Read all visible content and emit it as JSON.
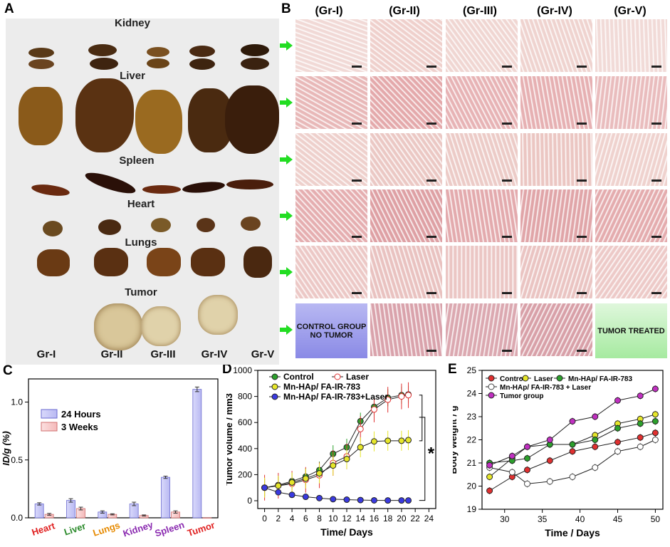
{
  "panel_labels": {
    "a": "A",
    "b": "B",
    "c": "C",
    "d": "D",
    "e": "E"
  },
  "panelA": {
    "organs": [
      "Kidney",
      "Liver",
      "Spleen",
      "Heart",
      "Lungs",
      "Tumor"
    ],
    "groups": [
      "Gr-I",
      "Gr-II",
      "Gr-III",
      "Gr-IV",
      "Gr-V"
    ]
  },
  "panelB": {
    "columns": [
      "(Gr-I)",
      "(Gr-II)",
      "(Gr-III)",
      "(Gr-IV)",
      "(Gr-V)"
    ],
    "control_box": "CONTROL GROUP NO TUMOR",
    "treated_box": "TUMOR TREATED"
  },
  "colors": {
    "bar1": "#b9b9f2",
    "bar2": "#f4b9b9",
    "control": "#2ca02c",
    "laser": "#e03030",
    "mnhap": "#e6e62a",
    "mnhap_laser": "#3a3ae0",
    "tumor_group": "#c030c0",
    "heart": "#e02020"
  },
  "chart_data": [
    {
      "type": "bar",
      "ylabel": "ID/g (%)",
      "ylim": [
        0,
        1.2
      ],
      "yticks": [
        "0.0",
        "0.5",
        "1.0"
      ],
      "categories": [
        "Heart",
        "Liver",
        "Lungs",
        "Kidney",
        "Spleen",
        "Tumor"
      ],
      "category_colors": [
        "#e02020",
        "#2a8a2a",
        "#e68a00",
        "#8a2ab0",
        "#8a2ab0",
        "#e02020"
      ],
      "series": [
        {
          "name": "24 Hours",
          "values": [
            0.12,
            0.15,
            0.05,
            0.12,
            0.35,
            1.11
          ],
          "errors": [
            0.01,
            0.015,
            0.01,
            0.015,
            0.01,
            0.02
          ]
        },
        {
          "name": "3 Weeks",
          "values": [
            0.03,
            0.08,
            0.03,
            0.02,
            0.05,
            0.0
          ],
          "errors": [
            0.008,
            0.012,
            0.005,
            0.005,
            0.01,
            0.0
          ]
        }
      ]
    },
    {
      "type": "line",
      "xlabel": "Time/ Days",
      "ylabel": "Tumor volume / mm3",
      "xlim": [
        -1,
        25
      ],
      "ylim": [
        -60,
        1000
      ],
      "xticks": [
        "0",
        "2",
        "4",
        "6",
        "8",
        "10",
        "12",
        "14",
        "16",
        "18",
        "20",
        "22",
        "24"
      ],
      "yticks": [
        "0",
        "200",
        "400",
        "600",
        "800",
        "1000"
      ],
      "annotation": "*",
      "x": [
        0,
        2,
        4,
        6,
        8,
        10,
        12,
        14,
        16,
        18,
        20,
        21
      ],
      "series": [
        {
          "name": "Control",
          "values": [
            100,
            120,
            150,
            185,
            235,
            360,
            410,
            610,
            720,
            790,
            810,
            815
          ]
        },
        {
          "name": "Laser",
          "values": [
            100,
            115,
            130,
            160,
            195,
            290,
            340,
            550,
            700,
            775,
            800,
            810
          ]
        },
        {
          "name": "Mn-HAp/ FA-IR-783",
          "values": [
            100,
            115,
            140,
            170,
            210,
            270,
            320,
            410,
            455,
            460,
            460,
            465
          ]
        },
        {
          "name": "Mn-HAp/ FA-IR-783+Laser",
          "values": [
            100,
            65,
            45,
            30,
            20,
            12,
            8,
            5,
            3,
            2,
            2,
            2
          ]
        }
      ]
    },
    {
      "type": "line",
      "xlabel": "Time / Days",
      "ylabel": "Body weight / g",
      "xlim": [
        27,
        51
      ],
      "ylim": [
        19,
        25
      ],
      "xticks": [
        "30",
        "35",
        "40",
        "45",
        "50"
      ],
      "yticks": [
        "19",
        "20",
        "21",
        "22",
        "23",
        "24",
        "25"
      ],
      "x": [
        28,
        31,
        33,
        36,
        39,
        42,
        45,
        48,
        50
      ],
      "series": [
        {
          "name": "Control",
          "values": [
            19.8,
            20.4,
            20.7,
            21.1,
            21.5,
            21.7,
            21.9,
            22.1,
            22.3
          ]
        },
        {
          "name": "Laser",
          "values": [
            20.4,
            21.2,
            21.7,
            21.8,
            21.8,
            22.2,
            22.7,
            22.9,
            23.1
          ]
        },
        {
          "name": "Mn-HAp/ FA-IR-783",
          "values": [
            21.0,
            21.1,
            21.2,
            21.8,
            21.8,
            22.0,
            22.5,
            22.7,
            22.8
          ]
        },
        {
          "name": "Mn-HAp/ FA-IR-783 + Laser",
          "values": [
            20.8,
            20.6,
            20.1,
            20.2,
            20.4,
            20.8,
            21.5,
            21.7,
            22.0
          ]
        },
        {
          "name": "Tumor group",
          "values": [
            20.9,
            21.3,
            21.7,
            22.0,
            22.8,
            23.0,
            23.7,
            23.9,
            24.2
          ]
        }
      ]
    }
  ]
}
